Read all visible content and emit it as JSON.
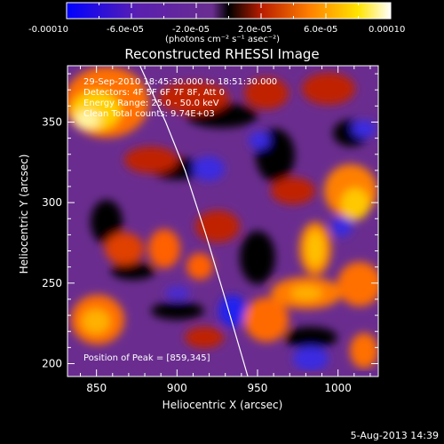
{
  "colorbar": {
    "tick_labels": [
      "-0.00010",
      "-6.0e-05",
      "-2.0e-05",
      "2.0e-05",
      "6.0e-05",
      "0.00010"
    ],
    "unit_label": "(photons cm⁻² s⁻¹ asec⁻²)",
    "range": [
      -0.0001,
      0.0001
    ],
    "colors": [
      "#0000ff",
      "#5a1fb0",
      "#6a2d8f",
      "#000000",
      "#b81c00",
      "#ff8000",
      "#ffe500",
      "#ffffff"
    ]
  },
  "chart_data": {
    "type": "heatmap",
    "title": "Reconstructed RHESSI Image",
    "xlabel": "Heliocentric X (arcsec)",
    "ylabel": "Heliocentric Y (arcsec)",
    "xlim": [
      832,
      1025
    ],
    "ylim": [
      192,
      385
    ],
    "x_ticks": [
      850,
      900,
      950,
      1000
    ],
    "y_ticks": [
      200,
      250,
      300,
      350
    ],
    "x_tick_labels": [
      "850",
      "900",
      "950",
      "1000"
    ],
    "y_tick_labels": [
      "200",
      "250",
      "300",
      "350"
    ],
    "annotations": [
      "29-Sep-2010 18:45:30.000 to 18:51:30.000",
      "Detectors: 4F 5F 6F 7F 8F, Att 0",
      "Energy Range: 25.0 - 50.0 keV",
      "Clean    Total counts: 9.74E+03"
    ],
    "peak_label": "Position of Peak = [859,345]",
    "peak_position": [
      859,
      345
    ],
    "limb_curve": [
      [
        877,
        385
      ],
      [
        893,
        350
      ],
      [
        905,
        320
      ],
      [
        918,
        280
      ],
      [
        930,
        240
      ],
      [
        944,
        192
      ]
    ]
  },
  "footer": {
    "date": "5-Aug-2013 14:39"
  }
}
